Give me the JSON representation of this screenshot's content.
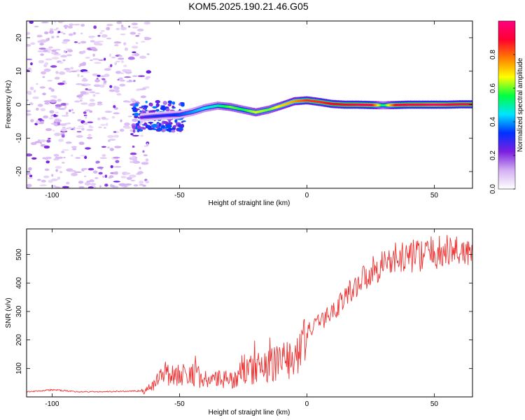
{
  "title": "KOM5.2025.190.21.46.G05",
  "chart_data": [
    {
      "type": "heatmap",
      "xlabel": "Height of straight line (km)",
      "ylabel": "Frequency (Hz)",
      "xlim": [
        -110,
        65
      ],
      "ylim": [
        -25,
        25
      ],
      "x_ticks": [
        -100,
        -50,
        0,
        50
      ],
      "y_ticks": [
        -20,
        -10,
        0,
        10,
        20
      ],
      "colorbar": {
        "label": "Normalized spectral amplitude",
        "range": [
          0,
          1
        ],
        "ticks": [
          "0.0",
          "0.2",
          "0.4",
          "0.6",
          "0.8"
        ],
        "colors": [
          "#ffffff",
          "#d4b0f2",
          "#7b1fe0",
          "#0030ff",
          "#00e5ff",
          "#00ff40",
          "#ffff00",
          "#ff7f00",
          "#ff0030",
          "#ff0080"
        ]
      },
      "ridge": {
        "x": [
          -65,
          -60,
          -55,
          -50,
          -45,
          -40,
          -35,
          -30,
          -25,
          -20,
          -15,
          -10,
          -5,
          0,
          5,
          10,
          15,
          20,
          25,
          30,
          35,
          40,
          45,
          50,
          55,
          60,
          65
        ],
        "freq": [
          -3.8,
          -3.5,
          -3.2,
          -3.0,
          -2.2,
          -1.0,
          -0.3,
          -0.7,
          -1.5,
          -2.3,
          -1.5,
          -0.3,
          1.0,
          1.3,
          0.8,
          0.2,
          0.0,
          0.0,
          -0.1,
          -0.2,
          -0.1,
          0.0,
          0.0,
          0.0,
          0.0,
          0.1,
          0.1
        ],
        "amplitude": [
          0.25,
          0.3,
          0.3,
          0.35,
          0.4,
          0.45,
          0.5,
          0.6,
          0.55,
          0.65,
          0.6,
          0.7,
          0.75,
          0.85,
          0.85,
          0.9,
          0.9,
          0.95,
          0.95,
          0.5,
          0.9,
          0.95,
          0.95,
          1.0,
          0.95,
          0.95,
          0.95
        ]
      },
      "noise_region": {
        "x": [
          -110,
          -62
        ],
        "freq": [
          -25,
          25
        ]
      }
    },
    {
      "type": "line",
      "xlabel": "Height of straight line (km)",
      "ylabel": "SNR (v/v)",
      "xlim": [
        -110,
        65
      ],
      "ylim": [
        0,
        590
      ],
      "x_ticks": [
        -100,
        -50,
        0,
        50
      ],
      "y_ticks": [
        100,
        200,
        300,
        400,
        500
      ],
      "color": "#ee3333",
      "x": [
        -110,
        -100,
        -90,
        -80,
        -70,
        -63,
        -60,
        -55,
        -50,
        -45,
        -40,
        -35,
        -30,
        -25,
        -20,
        -15,
        -10,
        -5,
        0,
        5,
        10,
        15,
        20,
        25,
        30,
        35,
        40,
        45,
        50,
        55,
        60,
        65
      ],
      "y": [
        18,
        25,
        18,
        18,
        20,
        22,
        45,
        90,
        75,
        85,
        60,
        60,
        60,
        85,
        100,
        110,
        125,
        140,
        230,
        260,
        300,
        350,
        400,
        440,
        470,
        485,
        495,
        500,
        505,
        510,
        515,
        510
      ]
    }
  ]
}
